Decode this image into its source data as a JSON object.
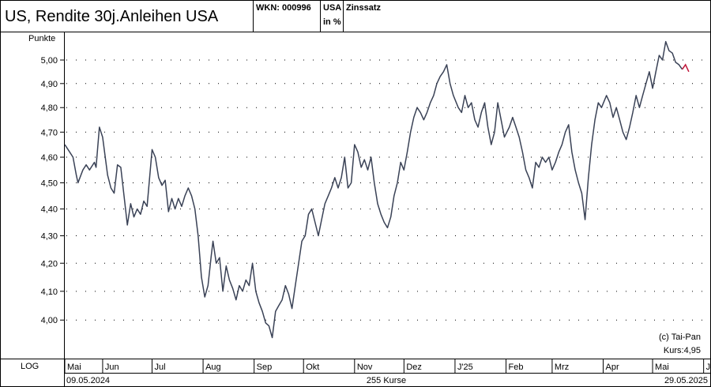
{
  "header": {
    "title": "US, Rendite 30j.Anleihen USA",
    "wkn": "WKN: 000996",
    "unit_line1": "USA",
    "unit_line2": "in %",
    "category": "Zinssatz"
  },
  "footer": {
    "scale": "LOG",
    "start_date": "09.05.2024",
    "count": "255 Kurse",
    "end_date": "29.05.2025"
  },
  "notes": {
    "copyright": "(c) Tai-Pan",
    "kurs": "Kurs:4,95"
  },
  "colors": {
    "series": "#3a4256",
    "last": "#c0163a"
  },
  "chart_data": {
    "type": "line",
    "title": "US, Rendite 30j.Anleihen USA",
    "ylabel": "Punkte",
    "y_scale": "log",
    "ylim": [
      3.87,
      5.12
    ],
    "xlim": [
      "2024-05-09",
      "2025-06-05"
    ],
    "grid": true,
    "y_ticks": [
      {
        "value": 4.0,
        "label": "4,00"
      },
      {
        "value": 4.1,
        "label": "4,10"
      },
      {
        "value": 4.2,
        "label": "4,20"
      },
      {
        "value": 4.3,
        "label": "4,30"
      },
      {
        "value": 4.4,
        "label": "4,40"
      },
      {
        "value": 4.5,
        "label": "4,50"
      },
      {
        "value": 4.6,
        "label": "4,60"
      },
      {
        "value": 4.7,
        "label": "4,70"
      },
      {
        "value": 4.8,
        "label": "4,80"
      },
      {
        "value": 4.9,
        "label": "4,90"
      },
      {
        "value": 5.0,
        "label": "5,00"
      }
    ],
    "x_ticks": [
      {
        "date": "2024-05-09",
        "label": "Mai"
      },
      {
        "date": "2024-06-01",
        "label": "Jun"
      },
      {
        "date": "2024-07-01",
        "label": "Jul"
      },
      {
        "date": "2024-08-01",
        "label": "Aug"
      },
      {
        "date": "2024-09-01",
        "label": "Sep"
      },
      {
        "date": "2024-10-01",
        "label": "Okt"
      },
      {
        "date": "2024-11-01",
        "label": "Nov"
      },
      {
        "date": "2024-12-01",
        "label": "Dez"
      },
      {
        "date": "2025-01-01",
        "label": "J'25"
      },
      {
        "date": "2025-02-01",
        "label": "Feb"
      },
      {
        "date": "2025-03-01",
        "label": "Mrz"
      },
      {
        "date": "2025-04-01",
        "label": "Apr"
      },
      {
        "date": "2025-05-01",
        "label": "Mai"
      },
      {
        "date": "2025-06-01",
        "label": "Jun"
      }
    ],
    "series": [
      {
        "points": [
          [
            "2024-05-09",
            4.65
          ],
          [
            "2024-05-11",
            4.63
          ],
          [
            "2024-05-14",
            4.6
          ],
          [
            "2024-05-16",
            4.53
          ],
          [
            "2024-05-17",
            4.5
          ],
          [
            "2024-05-20",
            4.55
          ],
          [
            "2024-05-22",
            4.57
          ],
          [
            "2024-05-24",
            4.55
          ],
          [
            "2024-05-27",
            4.58
          ],
          [
            "2024-05-28",
            4.56
          ],
          [
            "2024-05-30",
            4.72
          ],
          [
            "2024-06-01",
            4.68
          ],
          [
            "2024-06-04",
            4.53
          ],
          [
            "2024-06-06",
            4.48
          ],
          [
            "2024-06-08",
            4.46
          ],
          [
            "2024-06-10",
            4.57
          ],
          [
            "2024-06-12",
            4.56
          ],
          [
            "2024-06-14",
            4.45
          ],
          [
            "2024-06-16",
            4.34
          ],
          [
            "2024-06-18",
            4.42
          ],
          [
            "2024-06-20",
            4.37
          ],
          [
            "2024-06-22",
            4.4
          ],
          [
            "2024-06-24",
            4.38
          ],
          [
            "2024-06-26",
            4.43
          ],
          [
            "2024-06-28",
            4.41
          ],
          [
            "2024-07-01",
            4.63
          ],
          [
            "2024-07-03",
            4.6
          ],
          [
            "2024-07-05",
            4.52
          ],
          [
            "2024-07-07",
            4.49
          ],
          [
            "2024-07-09",
            4.51
          ],
          [
            "2024-07-11",
            4.39
          ],
          [
            "2024-07-13",
            4.44
          ],
          [
            "2024-07-15",
            4.4
          ],
          [
            "2024-07-17",
            4.44
          ],
          [
            "2024-07-19",
            4.41
          ],
          [
            "2024-07-21",
            4.45
          ],
          [
            "2024-07-23",
            4.48
          ],
          [
            "2024-07-25",
            4.45
          ],
          [
            "2024-07-27",
            4.4
          ],
          [
            "2024-07-29",
            4.3
          ],
          [
            "2024-07-31",
            4.15
          ],
          [
            "2024-08-02",
            4.08
          ],
          [
            "2024-08-04",
            4.12
          ],
          [
            "2024-08-06",
            4.23
          ],
          [
            "2024-08-07",
            4.28
          ],
          [
            "2024-08-09",
            4.2
          ],
          [
            "2024-08-11",
            4.22
          ],
          [
            "2024-08-13",
            4.1
          ],
          [
            "2024-08-15",
            4.19
          ],
          [
            "2024-08-17",
            4.14
          ],
          [
            "2024-08-19",
            4.11
          ],
          [
            "2024-08-21",
            4.07
          ],
          [
            "2024-08-23",
            4.12
          ],
          [
            "2024-08-25",
            4.1
          ],
          [
            "2024-08-27",
            4.14
          ],
          [
            "2024-08-29",
            4.12
          ],
          [
            "2024-08-31",
            4.2
          ],
          [
            "2024-09-02",
            4.1
          ],
          [
            "2024-09-04",
            4.06
          ],
          [
            "2024-09-06",
            4.03
          ],
          [
            "2024-09-08",
            3.99
          ],
          [
            "2024-09-10",
            3.98
          ],
          [
            "2024-09-12",
            3.94
          ],
          [
            "2024-09-14",
            4.03
          ],
          [
            "2024-09-16",
            4.05
          ],
          [
            "2024-09-18",
            4.07
          ],
          [
            "2024-09-20",
            4.12
          ],
          [
            "2024-09-22",
            4.09
          ],
          [
            "2024-09-24",
            4.04
          ],
          [
            "2024-09-26",
            4.12
          ],
          [
            "2024-09-28",
            4.2
          ],
          [
            "2024-09-30",
            4.28
          ],
          [
            "2024-10-02",
            4.3
          ],
          [
            "2024-10-04",
            4.38
          ],
          [
            "2024-10-06",
            4.4
          ],
          [
            "2024-10-08",
            4.35
          ],
          [
            "2024-10-10",
            4.3
          ],
          [
            "2024-10-12",
            4.36
          ],
          [
            "2024-10-14",
            4.42
          ],
          [
            "2024-10-16",
            4.45
          ],
          [
            "2024-10-18",
            4.48
          ],
          [
            "2024-10-20",
            4.52
          ],
          [
            "2024-10-22",
            4.48
          ],
          [
            "2024-10-24",
            4.52
          ],
          [
            "2024-10-26",
            4.6
          ],
          [
            "2024-10-28",
            4.48
          ],
          [
            "2024-10-30",
            4.5
          ],
          [
            "2024-11-01",
            4.65
          ],
          [
            "2024-11-03",
            4.62
          ],
          [
            "2024-11-05",
            4.56
          ],
          [
            "2024-11-07",
            4.59
          ],
          [
            "2024-11-09",
            4.55
          ],
          [
            "2024-11-11",
            4.6
          ],
          [
            "2024-11-13",
            4.5
          ],
          [
            "2024-11-15",
            4.42
          ],
          [
            "2024-11-17",
            4.38
          ],
          [
            "2024-11-19",
            4.35
          ],
          [
            "2024-11-21",
            4.33
          ],
          [
            "2024-11-23",
            4.37
          ],
          [
            "2024-11-25",
            4.45
          ],
          [
            "2024-11-27",
            4.5
          ],
          [
            "2024-11-29",
            4.58
          ],
          [
            "2024-12-01",
            4.55
          ],
          [
            "2024-12-03",
            4.62
          ],
          [
            "2024-12-05",
            4.7
          ],
          [
            "2024-12-07",
            4.76
          ],
          [
            "2024-12-09",
            4.8
          ],
          [
            "2024-12-11",
            4.78
          ],
          [
            "2024-12-13",
            4.75
          ],
          [
            "2024-12-15",
            4.78
          ],
          [
            "2024-12-17",
            4.82
          ],
          [
            "2024-12-19",
            4.85
          ],
          [
            "2024-12-21",
            4.9
          ],
          [
            "2024-12-23",
            4.93
          ],
          [
            "2024-12-25",
            4.95
          ],
          [
            "2024-12-27",
            4.98
          ],
          [
            "2024-12-29",
            4.9
          ],
          [
            "2024-12-31",
            4.85
          ],
          [
            "2025-01-03",
            4.8
          ],
          [
            "2025-01-05",
            4.78
          ],
          [
            "2025-01-07",
            4.85
          ],
          [
            "2025-01-09",
            4.8
          ],
          [
            "2025-01-11",
            4.82
          ],
          [
            "2025-01-13",
            4.75
          ],
          [
            "2025-01-15",
            4.72
          ],
          [
            "2025-01-17",
            4.78
          ],
          [
            "2025-01-19",
            4.82
          ],
          [
            "2025-01-21",
            4.72
          ],
          [
            "2025-01-23",
            4.65
          ],
          [
            "2025-01-25",
            4.7
          ],
          [
            "2025-01-27",
            4.82
          ],
          [
            "2025-01-29",
            4.75
          ],
          [
            "2025-01-31",
            4.68
          ],
          [
            "2025-02-03",
            4.72
          ],
          [
            "2025-02-05",
            4.76
          ],
          [
            "2025-02-07",
            4.72
          ],
          [
            "2025-02-09",
            4.68
          ],
          [
            "2025-02-11",
            4.62
          ],
          [
            "2025-02-13",
            4.55
          ],
          [
            "2025-02-15",
            4.52
          ],
          [
            "2025-02-17",
            4.48
          ],
          [
            "2025-02-19",
            4.58
          ],
          [
            "2025-02-21",
            4.56
          ],
          [
            "2025-02-23",
            4.6
          ],
          [
            "2025-02-25",
            4.58
          ],
          [
            "2025-02-27",
            4.6
          ],
          [
            "2025-03-01",
            4.55
          ],
          [
            "2025-03-03",
            4.58
          ],
          [
            "2025-03-05",
            4.62
          ],
          [
            "2025-03-07",
            4.65
          ],
          [
            "2025-03-09",
            4.7
          ],
          [
            "2025-03-11",
            4.73
          ],
          [
            "2025-03-13",
            4.62
          ],
          [
            "2025-03-15",
            4.55
          ],
          [
            "2025-03-17",
            4.5
          ],
          [
            "2025-03-19",
            4.46
          ],
          [
            "2025-03-21",
            4.36
          ],
          [
            "2025-03-23",
            4.52
          ],
          [
            "2025-03-25",
            4.65
          ],
          [
            "2025-03-27",
            4.75
          ],
          [
            "2025-03-29",
            4.82
          ],
          [
            "2025-03-31",
            4.8
          ],
          [
            "2025-04-03",
            4.85
          ],
          [
            "2025-04-05",
            4.82
          ],
          [
            "2025-04-07",
            4.76
          ],
          [
            "2025-04-09",
            4.8
          ],
          [
            "2025-04-11",
            4.75
          ],
          [
            "2025-04-13",
            4.7
          ],
          [
            "2025-04-15",
            4.67
          ],
          [
            "2025-04-17",
            4.72
          ],
          [
            "2025-04-19",
            4.78
          ],
          [
            "2025-04-21",
            4.85
          ],
          [
            "2025-04-23",
            4.8
          ],
          [
            "2025-04-25",
            4.85
          ],
          [
            "2025-04-27",
            4.9
          ],
          [
            "2025-04-29",
            4.95
          ],
          [
            "2025-05-01",
            4.88
          ],
          [
            "2025-05-03",
            4.95
          ],
          [
            "2025-05-05",
            5.02
          ],
          [
            "2025-05-07",
            5.0
          ],
          [
            "2025-05-09",
            5.08
          ],
          [
            "2025-05-11",
            5.04
          ],
          [
            "2025-05-13",
            5.03
          ],
          [
            "2025-05-15",
            4.99
          ],
          [
            "2025-05-17",
            4.98
          ],
          [
            "2025-05-19",
            4.96
          ]
        ],
        "last_points": [
          [
            "2025-05-19",
            4.96
          ],
          [
            "2025-05-21",
            4.98
          ],
          [
            "2025-05-23",
            4.95
          ]
        ]
      }
    ]
  }
}
